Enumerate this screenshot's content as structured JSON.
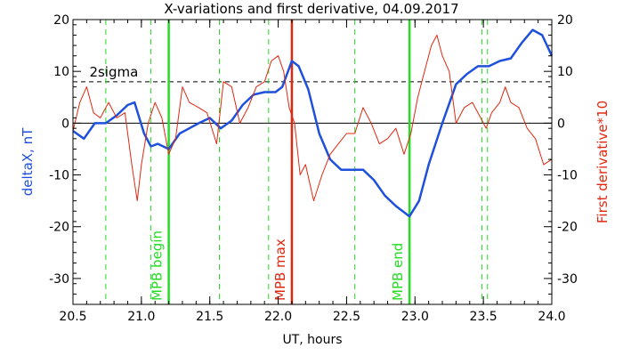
{
  "chart_data": {
    "type": "line",
    "title": "X-variations and first derivative, 04.09.2017",
    "xlabel": "UT, hours",
    "ylabel_left": "deltaX, nT",
    "ylabel_right": "First derivative*10",
    "xlim": [
      20.5,
      24.0
    ],
    "ylim": [
      -35,
      20
    ],
    "x_ticks": [
      20.5,
      21.0,
      21.5,
      22.0,
      22.5,
      23.0,
      23.5,
      24.0
    ],
    "x_tick_labels": [
      "20.5",
      "21.0",
      "21.5",
      "22.0",
      "22.5",
      "23.0",
      "23.5",
      "24.0"
    ],
    "y_ticks": [
      -30,
      -20,
      -10,
      0,
      10,
      20
    ],
    "y_tick_labels": [
      "-30",
      "-20",
      "-10",
      "0",
      "10",
      "20"
    ],
    "colors": {
      "deltaX": "#1e50dc",
      "derivative": "#e02810",
      "markers_green": "#22dd22",
      "marker_red": "#e02810",
      "threshold": "#000000"
    },
    "threshold": {
      "label": "2sigma",
      "value": 8
    },
    "zero_line": 0,
    "dashed_markers_x": [
      20.74,
      21.07,
      21.57,
      21.93,
      22.56,
      22.96,
      23.49,
      23.53
    ],
    "solid_markers": [
      {
        "label": "MPB begin",
        "x": 21.2,
        "color": "#22dd22"
      },
      {
        "label": "MPB max",
        "x": 22.1,
        "color": "#e02810"
      },
      {
        "label": "MPB end",
        "x": 22.96,
        "color": "#22dd22"
      }
    ],
    "series": [
      {
        "color": "#1e50dc",
        "x": [
          20.5,
          20.58,
          20.66,
          20.74,
          20.82,
          20.9,
          20.95,
          21.02,
          21.07,
          21.12,
          21.2,
          21.28,
          21.35,
          21.42,
          21.5,
          21.58,
          21.66,
          21.74,
          21.82,
          21.9,
          21.98,
          22.03,
          22.1,
          22.15,
          22.22,
          22.3,
          22.38,
          22.46,
          22.54,
          22.62,
          22.7,
          22.78,
          22.86,
          22.96,
          23.03,
          23.1,
          23.2,
          23.3,
          23.38,
          23.46,
          23.54,
          23.62,
          23.7,
          23.78,
          23.86,
          23.93,
          24.0
        ],
        "values": [
          -1.5,
          -3,
          0,
          0,
          1.5,
          3.5,
          4,
          -2,
          -4.5,
          -4,
          -5,
          -2,
          -1,
          0,
          1,
          -1,
          0.5,
          3.5,
          5.5,
          6,
          6,
          7,
          12,
          11,
          6.5,
          -2,
          -7,
          -9,
          -9,
          -9,
          -11,
          -14,
          -16,
          -18,
          -15,
          -8,
          0,
          7.5,
          9.5,
          11,
          11,
          12,
          12.5,
          15.5,
          18,
          17,
          13
        ]
      },
      {
        "color": "#e02810",
        "x": [
          20.5,
          20.55,
          20.6,
          20.65,
          20.7,
          20.76,
          20.82,
          20.88,
          20.93,
          20.97,
          21.0,
          21.05,
          21.1,
          21.15,
          21.2,
          21.25,
          21.3,
          21.35,
          21.42,
          21.48,
          21.55,
          21.6,
          21.66,
          21.72,
          21.78,
          21.84,
          21.9,
          21.95,
          22.0,
          22.04,
          22.08,
          22.12,
          22.16,
          22.2,
          22.26,
          22.32,
          22.38,
          22.44,
          22.5,
          22.56,
          22.62,
          22.68,
          22.74,
          22.8,
          22.86,
          22.92,
          22.97,
          23.02,
          23.07,
          23.12,
          23.16,
          23.2,
          23.25,
          23.3,
          23.36,
          23.42,
          23.48,
          23.52,
          23.56,
          23.62,
          23.66,
          23.7,
          23.76,
          23.82,
          23.88,
          23.94,
          24.0
        ],
        "values": [
          -1.5,
          4,
          7,
          2,
          1,
          4,
          1,
          2,
          -8,
          -15,
          -8,
          0,
          4,
          1,
          -6,
          -3,
          7,
          4,
          3,
          2,
          -4,
          8,
          7,
          0,
          3,
          7,
          8,
          12,
          13,
          10,
          3,
          0,
          -10,
          -8,
          -15,
          -10,
          -6,
          -4,
          -2,
          -2,
          3,
          0,
          -4,
          -3,
          -1,
          -6,
          -2,
          5,
          10,
          15,
          17,
          13,
          10,
          0,
          3,
          4,
          1,
          -1,
          2,
          4,
          7,
          4,
          3,
          -1,
          -3,
          -8,
          -7
        ]
      }
    ]
  }
}
